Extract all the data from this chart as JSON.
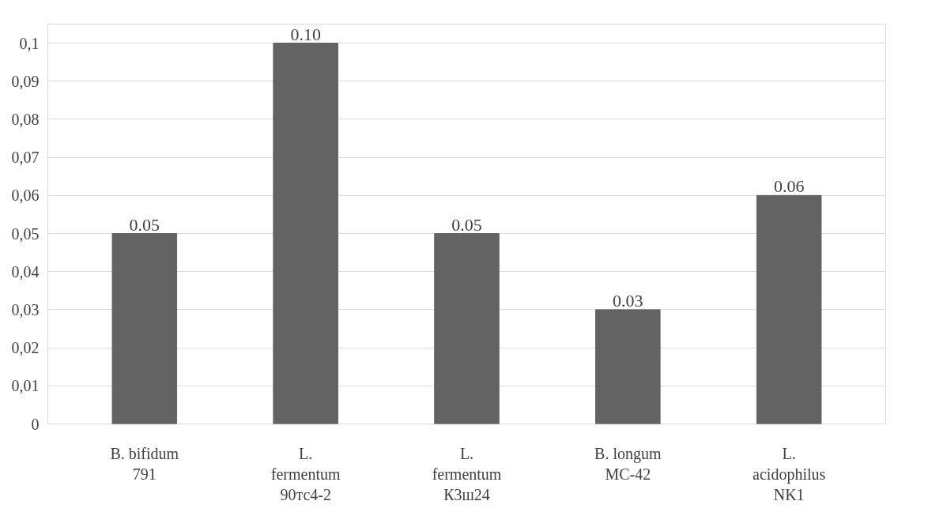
{
  "chart_data": {
    "type": "bar",
    "categories": [
      "B. bifidum 791",
      "L. fermentum 90тс4-2",
      "L. fermentum К3ш24",
      "B. longum МС-42",
      "L. acidophilus NK1"
    ],
    "values": [
      0.05,
      0.1,
      0.05,
      0.03,
      0.06
    ],
    "value_labels": [
      "0.05",
      "0.10",
      "0.05",
      "0.03",
      "0.06"
    ],
    "color": "#636363",
    "ylim": [
      0,
      0.105
    ],
    "yticks": [
      {
        "value": 0,
        "label": "0"
      },
      {
        "value": 0.01,
        "label": "0,01"
      },
      {
        "value": 0.02,
        "label": "0,02"
      },
      {
        "value": 0.03,
        "label": "0,03"
      },
      {
        "value": 0.04,
        "label": "0,04"
      },
      {
        "value": 0.05,
        "label": "0,05"
      },
      {
        "value": 0.06,
        "label": "0,06"
      },
      {
        "value": 0.07,
        "label": "0,07"
      },
      {
        "value": 0.08,
        "label": "0,08"
      },
      {
        "value": 0.09,
        "label": "0,09"
      },
      {
        "value": 0.1,
        "label": "0,1"
      }
    ],
    "grid": "y"
  }
}
